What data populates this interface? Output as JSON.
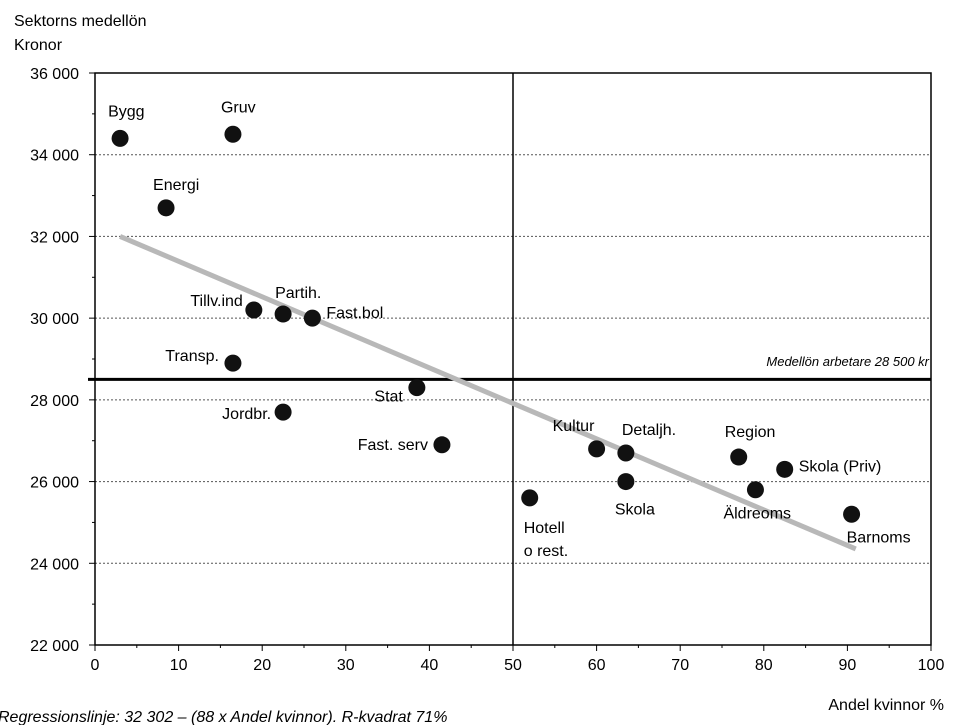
{
  "chart_data": {
    "type": "scatter",
    "ylabel_line1": "Sektorns medellön",
    "ylabel_line2": "Kronor",
    "xlabel": "Andel kvinnor %",
    "xlim": [
      0,
      100
    ],
    "ylim": [
      22000,
      36000
    ],
    "x_ticks": [
      0,
      10,
      20,
      30,
      40,
      50,
      60,
      70,
      80,
      90,
      100
    ],
    "y_ticks": [
      22000,
      24000,
      26000,
      28000,
      30000,
      32000,
      34000,
      36000
    ],
    "y_tick_labels": [
      "22 000",
      "24 000",
      "26 000",
      "28 000",
      "30 000",
      "32 000",
      "34 000",
      "36 000"
    ],
    "x_tick_labels": [
      "0",
      "10",
      "20",
      "30",
      "40",
      "50",
      "60",
      "70",
      "80",
      "90",
      "100"
    ],
    "grid": "horizontal-dotted",
    "reference_lines": {
      "vertical_x": 50,
      "horizontal_y": 28500,
      "horizontal_label": "Medellön arbetare 28 500 kr"
    },
    "regression": {
      "x_start": 3,
      "y_start": 32000,
      "x_end": 91,
      "y_end": 24350,
      "color": "#b8b8b8"
    },
    "points": [
      {
        "label": "Bygg",
        "x": 3,
        "y": 34400
      },
      {
        "label": "Gruv",
        "x": 16.5,
        "y": 34500
      },
      {
        "label": "Energi",
        "x": 8.5,
        "y": 32700
      },
      {
        "label": "Tillv.ind",
        "x": 19,
        "y": 30200
      },
      {
        "label": "Partih.",
        "x": 22.5,
        "y": 30100
      },
      {
        "label": "Fast.bol",
        "x": 26,
        "y": 30000
      },
      {
        "label": "Transp.",
        "x": 16.5,
        "y": 28900
      },
      {
        "label": "Stat",
        "x": 38.5,
        "y": 28300
      },
      {
        "label": "Jordbr.",
        "x": 22.5,
        "y": 27700
      },
      {
        "label": "Fast. serv",
        "x": 41.5,
        "y": 26900
      },
      {
        "label": "Kultur",
        "x": 60,
        "y": 26800
      },
      {
        "label": "Detaljh.",
        "x": 63.5,
        "y": 26700
      },
      {
        "label": "Region",
        "x": 77,
        "y": 26600
      },
      {
        "label": "Skola (Priv)",
        "x": 82.5,
        "y": 26300
      },
      {
        "label": "Skola",
        "x": 63.5,
        "y": 26000
      },
      {
        "label": "Äldreoms",
        "x": 79,
        "y": 25800
      },
      {
        "label": "Hotell",
        "label2": "o rest.",
        "x": 52,
        "y": 25600
      },
      {
        "label": "Barnoms",
        "x": 90.5,
        "y": 25200
      }
    ],
    "footnote": "Regressionslinje: 32 302 – (88 x Andel kvinnor). R-kvadrat 71%"
  }
}
